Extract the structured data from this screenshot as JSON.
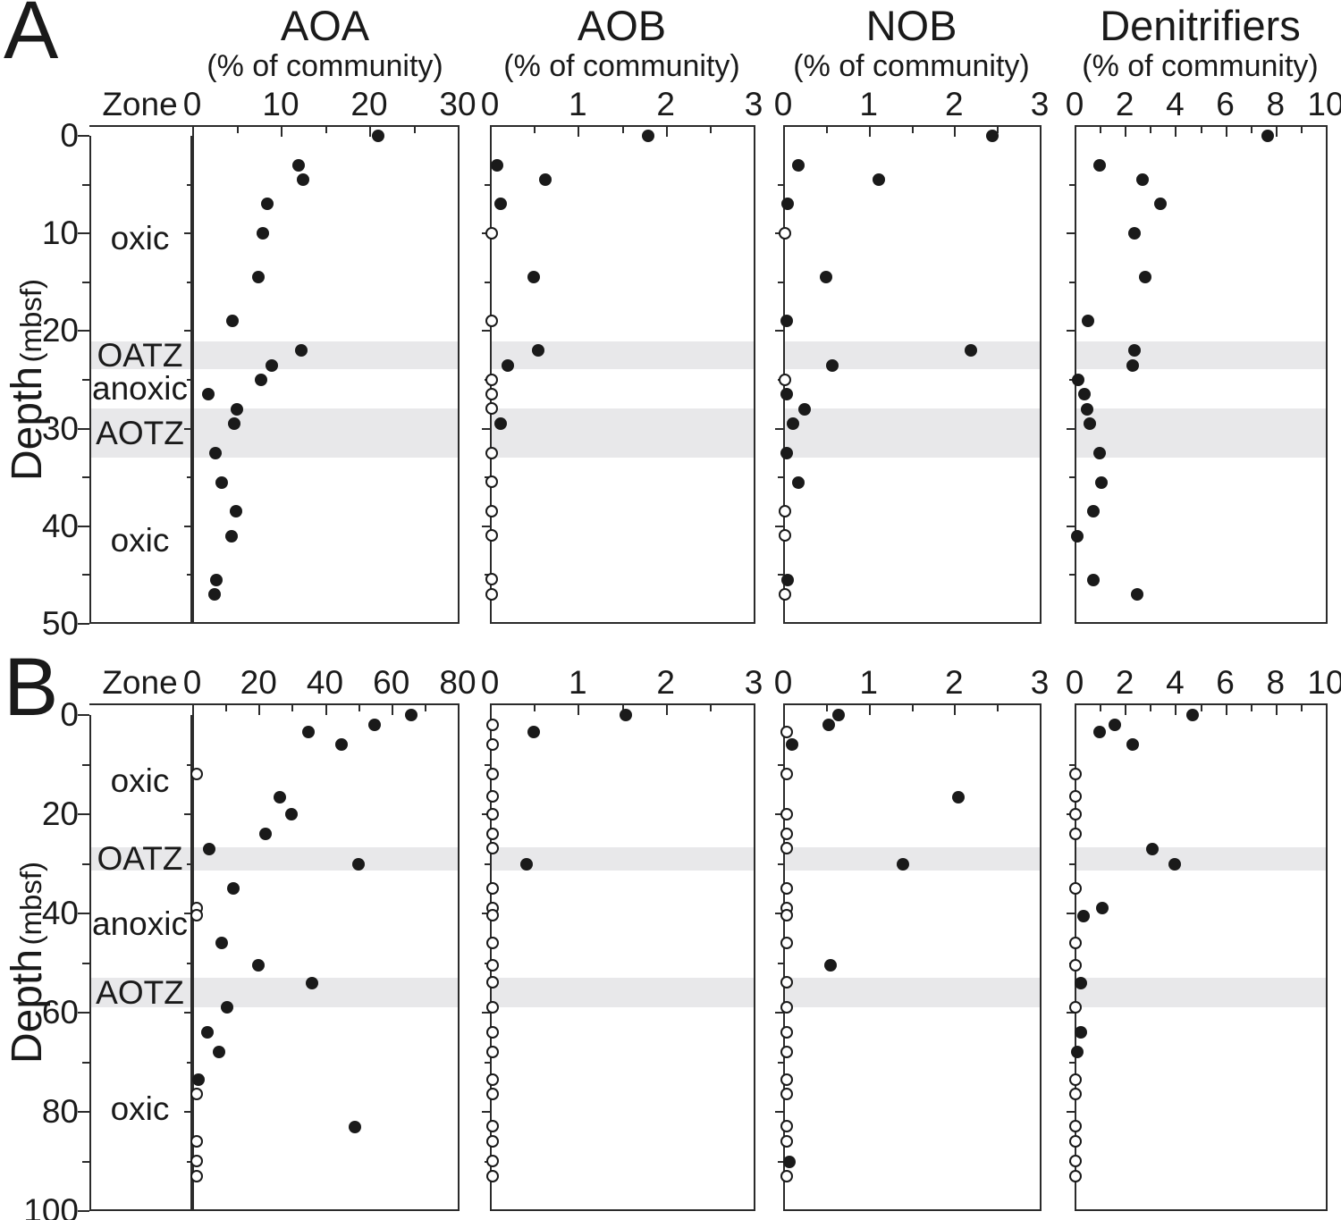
{
  "figure": {
    "panel_a_label": "A",
    "panel_b_label": "B",
    "depth_axis_label": "Depth",
    "depth_axis_unit": "(mbsf)",
    "zone_header": "Zone",
    "percent_subtitle": "(% of community)"
  },
  "colors": {
    "marker": "#1a1a1a",
    "zone_band": "#e8e8ea",
    "axis": "#2b2b2b",
    "background": "#ffffff"
  },
  "chart_data": [
    {
      "row": "A",
      "type": "scatter",
      "ylabel": "Depth (mbsf)",
      "ylim": [
        0,
        50
      ],
      "yticks": [
        0,
        10,
        20,
        30,
        40,
        50
      ],
      "zone_header": "Zone",
      "zones": [
        {
          "label": "oxic",
          "from": 0,
          "to": 21.1,
          "shaded": false
        },
        {
          "label": "OATZ",
          "from": 21.1,
          "to": 23.9,
          "shaded": true
        },
        {
          "label": "anoxic",
          "from": 23.9,
          "to": 27.9,
          "shaded": false
        },
        {
          "label": "AOTZ",
          "from": 27.9,
          "to": 33.0,
          "shaded": true
        },
        {
          "label": "oxic",
          "from": 33.0,
          "to": 50,
          "shaded": false
        }
      ],
      "point_format": [
        "depth_mbsf",
        "percent_of_community",
        "open_marker_1_true"
      ],
      "panels": [
        {
          "title": "AOA",
          "subtitle": "(% of community)",
          "xlim": [
            0,
            30
          ],
          "xticks": [
            0,
            10,
            20,
            30
          ],
          "xminor": 5,
          "points": [
            [
              0,
              21,
              0
            ],
            [
              3,
              12,
              0
            ],
            [
              4.5,
              12.5,
              0
            ],
            [
              7,
              8.5,
              0
            ],
            [
              10,
              8,
              0
            ],
            [
              14.5,
              7.5,
              0
            ],
            [
              19,
              4.5,
              0
            ],
            [
              22,
              12.3,
              0
            ],
            [
              23.5,
              9,
              0
            ],
            [
              25,
              7.8,
              0
            ],
            [
              26.5,
              1.8,
              0
            ],
            [
              28,
              5.1,
              0
            ],
            [
              29.5,
              4.7,
              0
            ],
            [
              32.5,
              2.6,
              0
            ],
            [
              35.5,
              3.3,
              0
            ],
            [
              38.5,
              4.9,
              0
            ],
            [
              41,
              4.4,
              0
            ],
            [
              45.5,
              2.7,
              0
            ],
            [
              47,
              2.5,
              0
            ]
          ]
        },
        {
          "title": "AOB",
          "subtitle": "(% of community)",
          "xlim": [
            0,
            3
          ],
          "xticks": [
            0,
            1,
            2,
            3
          ],
          "xminor": 0.5,
          "points": [
            [
              0,
              1.8,
              0
            ],
            [
              3,
              0.08,
              0
            ],
            [
              4.5,
              0.63,
              0
            ],
            [
              7,
              0.12,
              0
            ],
            [
              10,
              0.02,
              1
            ],
            [
              14.5,
              0.5,
              0
            ],
            [
              19,
              0.02,
              1
            ],
            [
              22,
              0.55,
              0
            ],
            [
              23.5,
              0.2,
              0
            ],
            [
              25,
              0.02,
              1
            ],
            [
              26.5,
              0.02,
              1
            ],
            [
              28,
              0.02,
              1
            ],
            [
              29.5,
              0.12,
              0
            ],
            [
              32.5,
              0.02,
              1
            ],
            [
              35.5,
              0.02,
              1
            ],
            [
              38.5,
              0.02,
              1
            ],
            [
              41,
              0.02,
              1
            ],
            [
              45.5,
              0.02,
              1
            ],
            [
              47,
              0.02,
              1
            ]
          ]
        },
        {
          "title": "NOB",
          "subtitle": "(% of community)",
          "xlim": [
            0,
            3
          ],
          "xticks": [
            0,
            1,
            2,
            3
          ],
          "xminor": 0.5,
          "points": [
            [
              0,
              2.45,
              0
            ],
            [
              3,
              0.18,
              0
            ],
            [
              4.5,
              1.12,
              0
            ],
            [
              7,
              0.05,
              0
            ],
            [
              10,
              0.02,
              1
            ],
            [
              14.5,
              0.5,
              0
            ],
            [
              19,
              0.04,
              0
            ],
            [
              22,
              2.2,
              0
            ],
            [
              23.5,
              0.57,
              0
            ],
            [
              25,
              0.02,
              1
            ],
            [
              26.5,
              0.04,
              0
            ],
            [
              28,
              0.25,
              0
            ],
            [
              29.5,
              0.11,
              0
            ],
            [
              32.5,
              0.04,
              0
            ],
            [
              35.5,
              0.18,
              0
            ],
            [
              38.5,
              0.02,
              1
            ],
            [
              41,
              0.02,
              1
            ],
            [
              45.5,
              0.05,
              0
            ],
            [
              47,
              0.02,
              1
            ]
          ]
        },
        {
          "title": "Denitrifiers",
          "subtitle": "(% of community)",
          "xlim": [
            0,
            10
          ],
          "xticks": [
            0,
            2,
            4,
            6,
            8,
            10
          ],
          "xminor": 1,
          "points": [
            [
              0,
              7.7,
              0
            ],
            [
              3,
              1,
              0
            ],
            [
              4.5,
              2.7,
              0
            ],
            [
              7,
              3.4,
              0
            ],
            [
              10,
              2.4,
              0
            ],
            [
              14.5,
              2.8,
              0
            ],
            [
              19,
              0.55,
              0
            ],
            [
              22,
              2.4,
              0
            ],
            [
              23.5,
              2.3,
              0
            ],
            [
              25,
              0.15,
              0
            ],
            [
              26.5,
              0.4,
              0
            ],
            [
              28,
              0.5,
              0
            ],
            [
              29.5,
              0.6,
              0
            ],
            [
              32.5,
              1,
              0
            ],
            [
              35.5,
              1.05,
              0
            ],
            [
              38.5,
              0.75,
              0
            ],
            [
              41,
              0.1,
              0
            ],
            [
              45.5,
              0.75,
              0
            ],
            [
              47,
              2.5,
              0
            ]
          ]
        }
      ]
    },
    {
      "row": "B",
      "type": "scatter",
      "ylabel": "Depth (mbsf)",
      "ylim": [
        0,
        100
      ],
      "yticks": [
        0,
        20,
        40,
        60,
        80,
        100
      ],
      "zone_header": "Zone",
      "zones": [
        {
          "label": "oxic",
          "from": 0,
          "to": 26.7,
          "shaded": false
        },
        {
          "label": "OATZ",
          "from": 26.7,
          "to": 31.3,
          "shaded": true
        },
        {
          "label": "anoxic",
          "from": 31.3,
          "to": 53.0,
          "shaded": false
        },
        {
          "label": "AOTZ",
          "from": 53.0,
          "to": 59.0,
          "shaded": true
        },
        {
          "label": "oxic",
          "from": 59.0,
          "to": 100,
          "shaded": false
        }
      ],
      "point_format": [
        "depth_mbsf",
        "percent_of_community",
        "open_marker_1_true"
      ],
      "panels": [
        {
          "title": "AOA",
          "subtitle": "(% of community)",
          "xlim": [
            0,
            80
          ],
          "xticks": [
            0,
            20,
            40,
            60,
            80
          ],
          "xminor": 10,
          "points": [
            [
              0,
              66,
              0
            ],
            [
              2,
              55,
              0
            ],
            [
              3.5,
              35,
              0
            ],
            [
              6,
              45,
              0
            ],
            [
              12,
              1.5,
              1
            ],
            [
              16.5,
              26.5,
              0
            ],
            [
              20,
              30,
              0
            ],
            [
              24,
              22,
              0
            ],
            [
              27,
              5,
              0
            ],
            [
              30,
              50,
              0
            ],
            [
              35,
              12.5,
              0
            ],
            [
              39,
              1.5,
              1
            ],
            [
              40.5,
              1.5,
              1
            ],
            [
              46,
              9,
              0
            ],
            [
              50.5,
              20,
              0
            ],
            [
              54,
              36,
              0
            ],
            [
              59,
              10.5,
              0
            ],
            [
              64,
              4.5,
              0
            ],
            [
              68,
              8,
              0
            ],
            [
              73.5,
              2,
              0
            ],
            [
              76.5,
              1.5,
              1
            ],
            [
              83,
              49,
              0
            ],
            [
              86,
              1.5,
              1
            ],
            [
              90,
              1.5,
              1
            ],
            [
              93,
              1.5,
              1
            ]
          ]
        },
        {
          "title": "AOB",
          "subtitle": "(% of community)",
          "xlim": [
            0,
            3
          ],
          "xticks": [
            0,
            1,
            2,
            3
          ],
          "xminor": 0.5,
          "points": [
            [
              0,
              1.55,
              0
            ],
            [
              2,
              0.03,
              1
            ],
            [
              3.5,
              0.5,
              0
            ],
            [
              6,
              0.03,
              1
            ],
            [
              12,
              0.03,
              1
            ],
            [
              16.5,
              0.03,
              1
            ],
            [
              20,
              0.03,
              1
            ],
            [
              24,
              0.03,
              1
            ],
            [
              27,
              0.03,
              1
            ],
            [
              30,
              0.42,
              0
            ],
            [
              35,
              0.03,
              1
            ],
            [
              39,
              0.03,
              1
            ],
            [
              40.5,
              0.03,
              1
            ],
            [
              46,
              0.03,
              1
            ],
            [
              50.5,
              0.03,
              1
            ],
            [
              54,
              0.03,
              1
            ],
            [
              59,
              0.03,
              1
            ],
            [
              64,
              0.03,
              1
            ],
            [
              68,
              0.03,
              1
            ],
            [
              73.5,
              0.03,
              1
            ],
            [
              76.5,
              0.03,
              1
            ],
            [
              83,
              0.03,
              1
            ],
            [
              86,
              0.03,
              1
            ],
            [
              90,
              0.03,
              1
            ],
            [
              93,
              0.03,
              1
            ]
          ]
        },
        {
          "title": "NOB",
          "subtitle": "(% of community)",
          "xlim": [
            0,
            3
          ],
          "xticks": [
            0,
            1,
            2,
            3
          ],
          "xminor": 0.5,
          "points": [
            [
              0,
              0.65,
              0
            ],
            [
              2,
              0.53,
              0
            ],
            [
              3.5,
              0.05,
              1
            ],
            [
              6,
              0.1,
              0
            ],
            [
              12,
              0.05,
              1
            ],
            [
              16.5,
              2.05,
              0
            ],
            [
              20,
              0.05,
              1
            ],
            [
              24,
              0.05,
              1
            ],
            [
              27,
              0.05,
              1
            ],
            [
              30,
              1.4,
              0
            ],
            [
              35,
              0.05,
              1
            ],
            [
              39,
              0.05,
              1
            ],
            [
              40.5,
              0.05,
              1
            ],
            [
              46,
              0.05,
              1
            ],
            [
              50.5,
              0.55,
              0
            ],
            [
              54,
              0.05,
              1
            ],
            [
              59,
              0.05,
              1
            ],
            [
              64,
              0.05,
              1
            ],
            [
              68,
              0.05,
              1
            ],
            [
              73.5,
              0.05,
              1
            ],
            [
              76.5,
              0.05,
              1
            ],
            [
              83,
              0.05,
              1
            ],
            [
              86,
              0.05,
              1
            ],
            [
              90,
              0.07,
              0
            ],
            [
              93,
              0.05,
              1
            ]
          ]
        },
        {
          "title": "Denitrifiers",
          "subtitle": "(% of community)",
          "xlim": [
            0,
            10
          ],
          "xticks": [
            0,
            2,
            4,
            6,
            8,
            10
          ],
          "xminor": 1,
          "points": [
            [
              0,
              4.7,
              0
            ],
            [
              2,
              1.6,
              0
            ],
            [
              3.5,
              1,
              0
            ],
            [
              6,
              2.3,
              0
            ],
            [
              12,
              0.05,
              1
            ],
            [
              16.5,
              0.05,
              1
            ],
            [
              20,
              0.05,
              1
            ],
            [
              24,
              0.05,
              1
            ],
            [
              27,
              3.1,
              0
            ],
            [
              30,
              4,
              0
            ],
            [
              35,
              0.05,
              1
            ],
            [
              39,
              1.1,
              0
            ],
            [
              40.5,
              0.35,
              0
            ],
            [
              46,
              0.05,
              1
            ],
            [
              50.5,
              0.05,
              1
            ],
            [
              54,
              0.25,
              0
            ],
            [
              59,
              0.05,
              1
            ],
            [
              64,
              0.25,
              0
            ],
            [
              68,
              0.12,
              0
            ],
            [
              73.5,
              0.05,
              1
            ],
            [
              76.5,
              0.05,
              1
            ],
            [
              83,
              0.05,
              1
            ],
            [
              86,
              0.05,
              1
            ],
            [
              90,
              0.05,
              1
            ],
            [
              93,
              0.05,
              1
            ]
          ]
        }
      ]
    }
  ]
}
